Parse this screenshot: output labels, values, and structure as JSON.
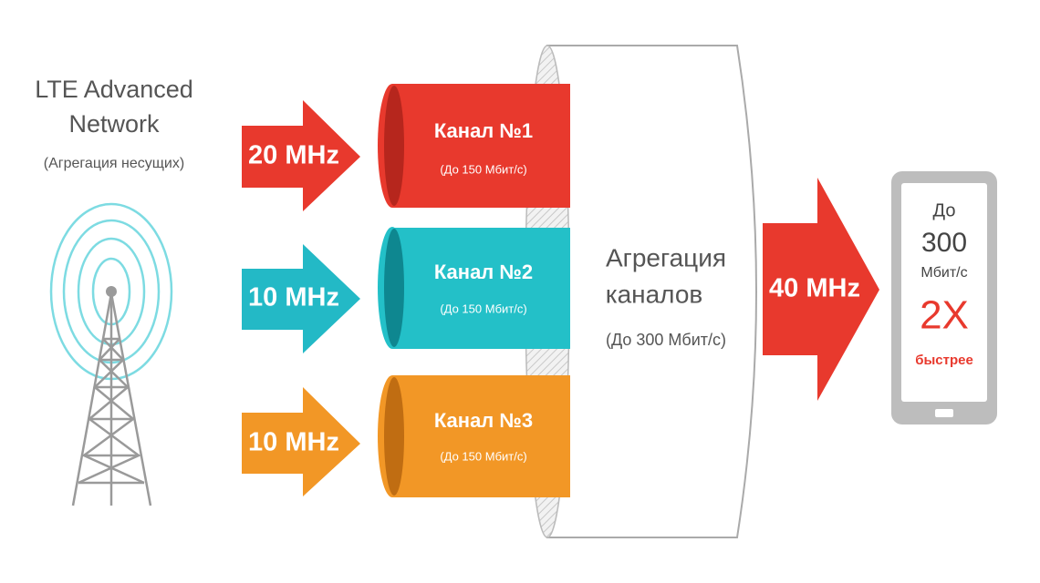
{
  "network": {
    "title_lines": [
      "LTE Advanced",
      "Network"
    ],
    "subtitle": "(Агрегация несущих)"
  },
  "channels": [
    {
      "bandwidth": "20 MHz",
      "name": "Канал №1",
      "speed": "(До 150 Мбит/с)"
    },
    {
      "bandwidth": "10 MHz",
      "name": "Канал №2",
      "speed": "(До 150 Мбит/с)"
    },
    {
      "bandwidth": "10 MHz",
      "name": "Канал №3",
      "speed": "(До 150 Мбит/с)"
    }
  ],
  "aggregation": {
    "title_lines": [
      "Агрегация",
      "каналов"
    ],
    "speed": "(До 300 Мбит/с)"
  },
  "output": {
    "bandwidth": "40 MHz"
  },
  "phone": {
    "prefix": "До",
    "speed": "300",
    "unit": "Мбит/с",
    "factor": "2X",
    "caption": "быстрее"
  }
}
